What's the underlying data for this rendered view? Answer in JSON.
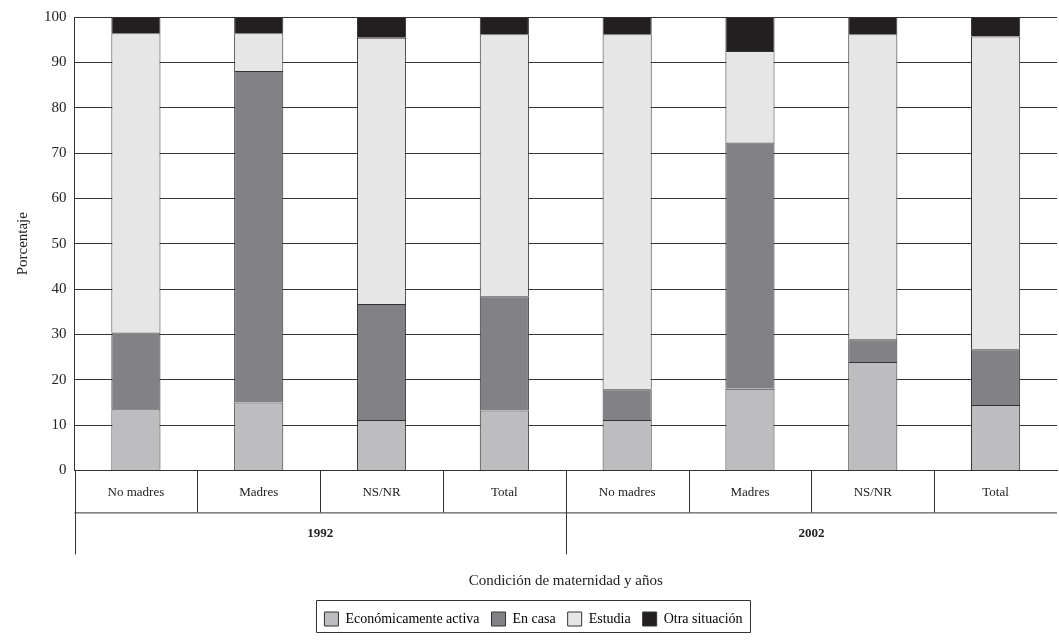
{
  "chart_data": {
    "type": "bar",
    "stacked": true,
    "xlabel": "Condición de maternidad y años",
    "ylabel": "Porcentaje",
    "categories": [
      "No madres",
      "Madres",
      "NS/NR",
      "Total",
      "No madres",
      "Madres",
      "NS/NR",
      "Total"
    ],
    "series": [
      {
        "name": "Económicamente activa",
        "color": "#bdbdc0",
        "values": [
          13.5,
          15.0,
          11.1,
          13.2,
          11.1,
          18.0,
          23.9,
          14.4
        ]
      },
      {
        "name": "En casa",
        "color": "#828286",
        "values": [
          16.9,
          73.1,
          25.6,
          25.2,
          6.8,
          54.3,
          5.0,
          12.3
        ]
      },
      {
        "name": "Estudia",
        "color": "#e6e6e6",
        "values": [
          66.0,
          8.3,
          58.7,
          57.8,
          78.3,
          20.2,
          67.3,
          69.0
        ]
      },
      {
        "name": "Otra situación",
        "color": "#231f20",
        "values": [
          3.6,
          3.6,
          4.6,
          3.8,
          3.8,
          7.5,
          3.8,
          4.3
        ]
      }
    ],
    "ylim": [
      0,
      100
    ],
    "yticks": [
      0,
      10,
      20,
      30,
      40,
      50,
      60,
      70,
      80,
      90,
      100
    ],
    "grid": "y",
    "legend": "bottom",
    "annotations": [
      "1992",
      "2002"
    ]
  }
}
